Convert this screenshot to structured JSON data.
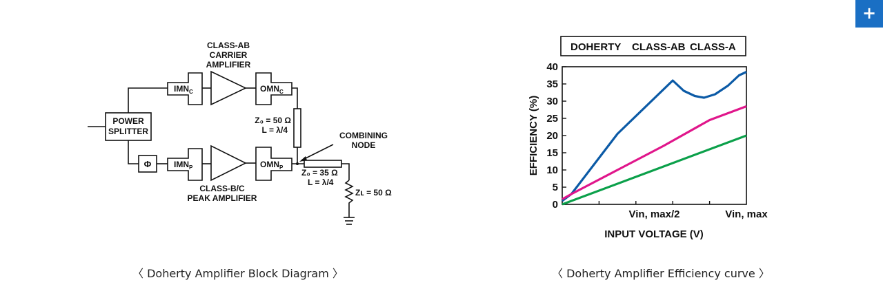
{
  "plus_button": {
    "label": "+",
    "icon": "plus-icon"
  },
  "left_caption": "〈 Doherty Amplifier Block Diagram 〉",
  "right_caption": "〈 Doherty Amplifier Efficiency curve 〉",
  "block_diagram": {
    "carrier_label": [
      "CLASS-AB",
      "CARRIER",
      "AMPLIFIER"
    ],
    "peak_label": [
      "CLASS-B/C",
      "PEAK AMPLIFIER"
    ],
    "power_splitter": [
      "POWER",
      "SPLITTER"
    ],
    "phase_symbol": "Φ",
    "imn_c": "IMN",
    "imn_c_sub": "C",
    "omn_c": "OMN",
    "omn_c_sub": "C",
    "imn_p": "IMN",
    "imn_p_sub": "P",
    "omn_p": "OMN",
    "omn_p_sub": "P",
    "tline1_z": "Z₀ = 50 Ω",
    "tline1_l": "L = λ/4",
    "tline2_z": "Z₀ = 35 Ω",
    "tline2_l": "L = λ/4",
    "combining_node": [
      "COMBINING",
      "NODE"
    ],
    "load_label": "Zʟ = 50 Ω"
  },
  "chart_data": {
    "type": "line",
    "legend_position": "top",
    "xlabel": "INPUT VOLTAGE (V)",
    "ylabel": "EFFICIENCY (%)",
    "ylim": [
      0,
      40
    ],
    "xlim": [
      0,
      1
    ],
    "yticks": [
      0,
      5,
      10,
      15,
      20,
      25,
      30,
      35,
      40
    ],
    "x_tick_labels": [
      {
        "x": 0.5,
        "label": "Vin, max/2"
      },
      {
        "x": 1.0,
        "label": "Vin, max"
      }
    ],
    "grid": false,
    "series": [
      {
        "name": "DOHERTY",
        "color": "#0b5aa6",
        "points": [
          [
            0,
            1
          ],
          [
            0.05,
            3
          ],
          [
            0.3,
            20.5
          ],
          [
            0.6,
            36
          ],
          [
            0.66,
            33
          ],
          [
            0.72,
            31.5
          ],
          [
            0.77,
            31
          ],
          [
            0.83,
            32
          ],
          [
            0.9,
            34.5
          ],
          [
            0.96,
            37.5
          ],
          [
            1,
            38.5
          ]
        ]
      },
      {
        "name": "CLASS-AB",
        "color": "#e0168b",
        "points": [
          [
            0,
            1.5
          ],
          [
            0.05,
            3
          ],
          [
            0.3,
            10
          ],
          [
            0.55,
            17
          ],
          [
            0.8,
            24.5
          ],
          [
            1,
            28.5
          ]
        ]
      },
      {
        "name": "CLASS-A",
        "color": "#0ba04a",
        "points": [
          [
            0,
            0
          ],
          [
            0.05,
            1
          ],
          [
            0.5,
            10
          ],
          [
            1,
            20
          ]
        ]
      }
    ]
  }
}
